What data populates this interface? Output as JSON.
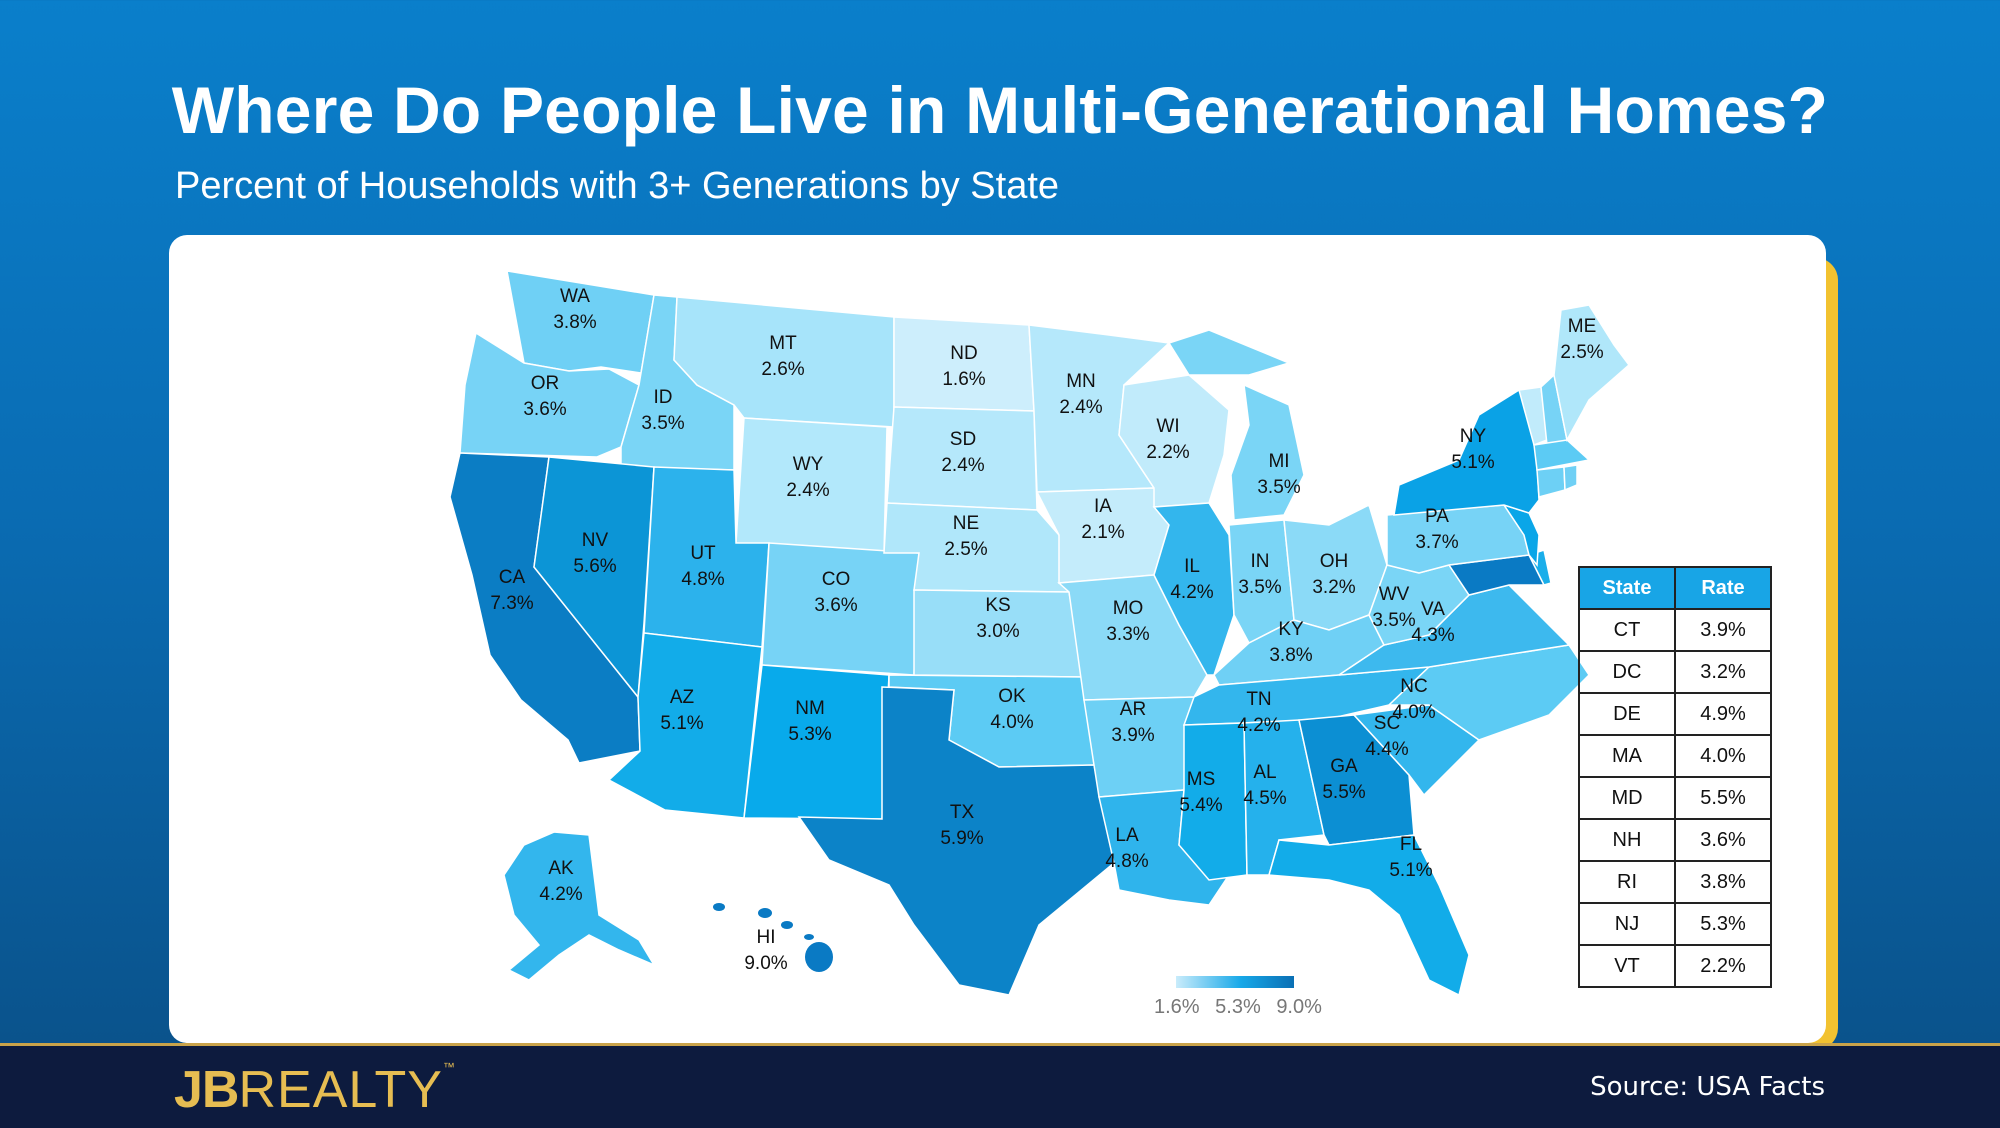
{
  "title": "Where Do People Live in Multi-Generational Homes?",
  "subtitle": "Percent of Households with 3+ Generations by State",
  "colors": {
    "background": "#0a6cb3",
    "accent": "#f2c230",
    "footer": "#0d1b3e",
    "scale_low": "#c9ecfb",
    "scale_mid": "#17a8e8",
    "scale_high": "#0a6fb4"
  },
  "legend": {
    "min": "1.6%",
    "mid": "5.3%",
    "max": "9.0%"
  },
  "map_labels": [
    {
      "abbr": "WA",
      "value": "3.8%"
    },
    {
      "abbr": "OR",
      "value": "3.6%"
    },
    {
      "abbr": "CA",
      "value": "7.3%"
    },
    {
      "abbr": "ID",
      "value": "3.5%"
    },
    {
      "abbr": "NV",
      "value": "5.6%"
    },
    {
      "abbr": "MT",
      "value": "2.6%"
    },
    {
      "abbr": "WY",
      "value": "2.4%"
    },
    {
      "abbr": "UT",
      "value": "4.8%"
    },
    {
      "abbr": "AZ",
      "value": "5.1%"
    },
    {
      "abbr": "CO",
      "value": "3.6%"
    },
    {
      "abbr": "NM",
      "value": "5.3%"
    },
    {
      "abbr": "ND",
      "value": "1.6%"
    },
    {
      "abbr": "SD",
      "value": "2.4%"
    },
    {
      "abbr": "NE",
      "value": "2.5%"
    },
    {
      "abbr": "KS",
      "value": "3.0%"
    },
    {
      "abbr": "OK",
      "value": "4.0%"
    },
    {
      "abbr": "TX",
      "value": "5.9%"
    },
    {
      "abbr": "MN",
      "value": "2.4%"
    },
    {
      "abbr": "IA",
      "value": "2.1%"
    },
    {
      "abbr": "MO",
      "value": "3.3%"
    },
    {
      "abbr": "AR",
      "value": "3.9%"
    },
    {
      "abbr": "LA",
      "value": "4.8%"
    },
    {
      "abbr": "WI",
      "value": "2.2%"
    },
    {
      "abbr": "IL",
      "value": "4.2%"
    },
    {
      "abbr": "MI",
      "value": "3.5%"
    },
    {
      "abbr": "IN",
      "value": "3.5%"
    },
    {
      "abbr": "OH",
      "value": "3.2%"
    },
    {
      "abbr": "KY",
      "value": "3.8%"
    },
    {
      "abbr": "TN",
      "value": "4.2%"
    },
    {
      "abbr": "MS",
      "value": "5.4%"
    },
    {
      "abbr": "AL",
      "value": "4.5%"
    },
    {
      "abbr": "GA",
      "value": "5.5%"
    },
    {
      "abbr": "FL",
      "value": "5.1%"
    },
    {
      "abbr": "SC",
      "value": "4.4%"
    },
    {
      "abbr": "NC",
      "value": "4.0%"
    },
    {
      "abbr": "VA",
      "value": "4.3%"
    },
    {
      "abbr": "WV",
      "value": "3.5%"
    },
    {
      "abbr": "PA",
      "value": "3.7%"
    },
    {
      "abbr": "NY",
      "value": "5.1%"
    },
    {
      "abbr": "ME",
      "value": "2.5%"
    },
    {
      "abbr": "AK",
      "value": "4.2%"
    },
    {
      "abbr": "HI",
      "value": "9.0%"
    }
  ],
  "table": {
    "headers": [
      "State",
      "Rate"
    ],
    "rows": [
      [
        "CT",
        "3.9%"
      ],
      [
        "DC",
        "3.2%"
      ],
      [
        "DE",
        "4.9%"
      ],
      [
        "MA",
        "4.0%"
      ],
      [
        "MD",
        "5.5%"
      ],
      [
        "NH",
        "3.6%"
      ],
      [
        "RI",
        "3.8%"
      ],
      [
        "NJ",
        "5.3%"
      ],
      [
        "VT",
        "2.2%"
      ]
    ]
  },
  "footer": {
    "logo_initials": "JB",
    "logo_word": "REALTY",
    "logo_tm": "™",
    "source": "Source: USA Facts"
  }
}
